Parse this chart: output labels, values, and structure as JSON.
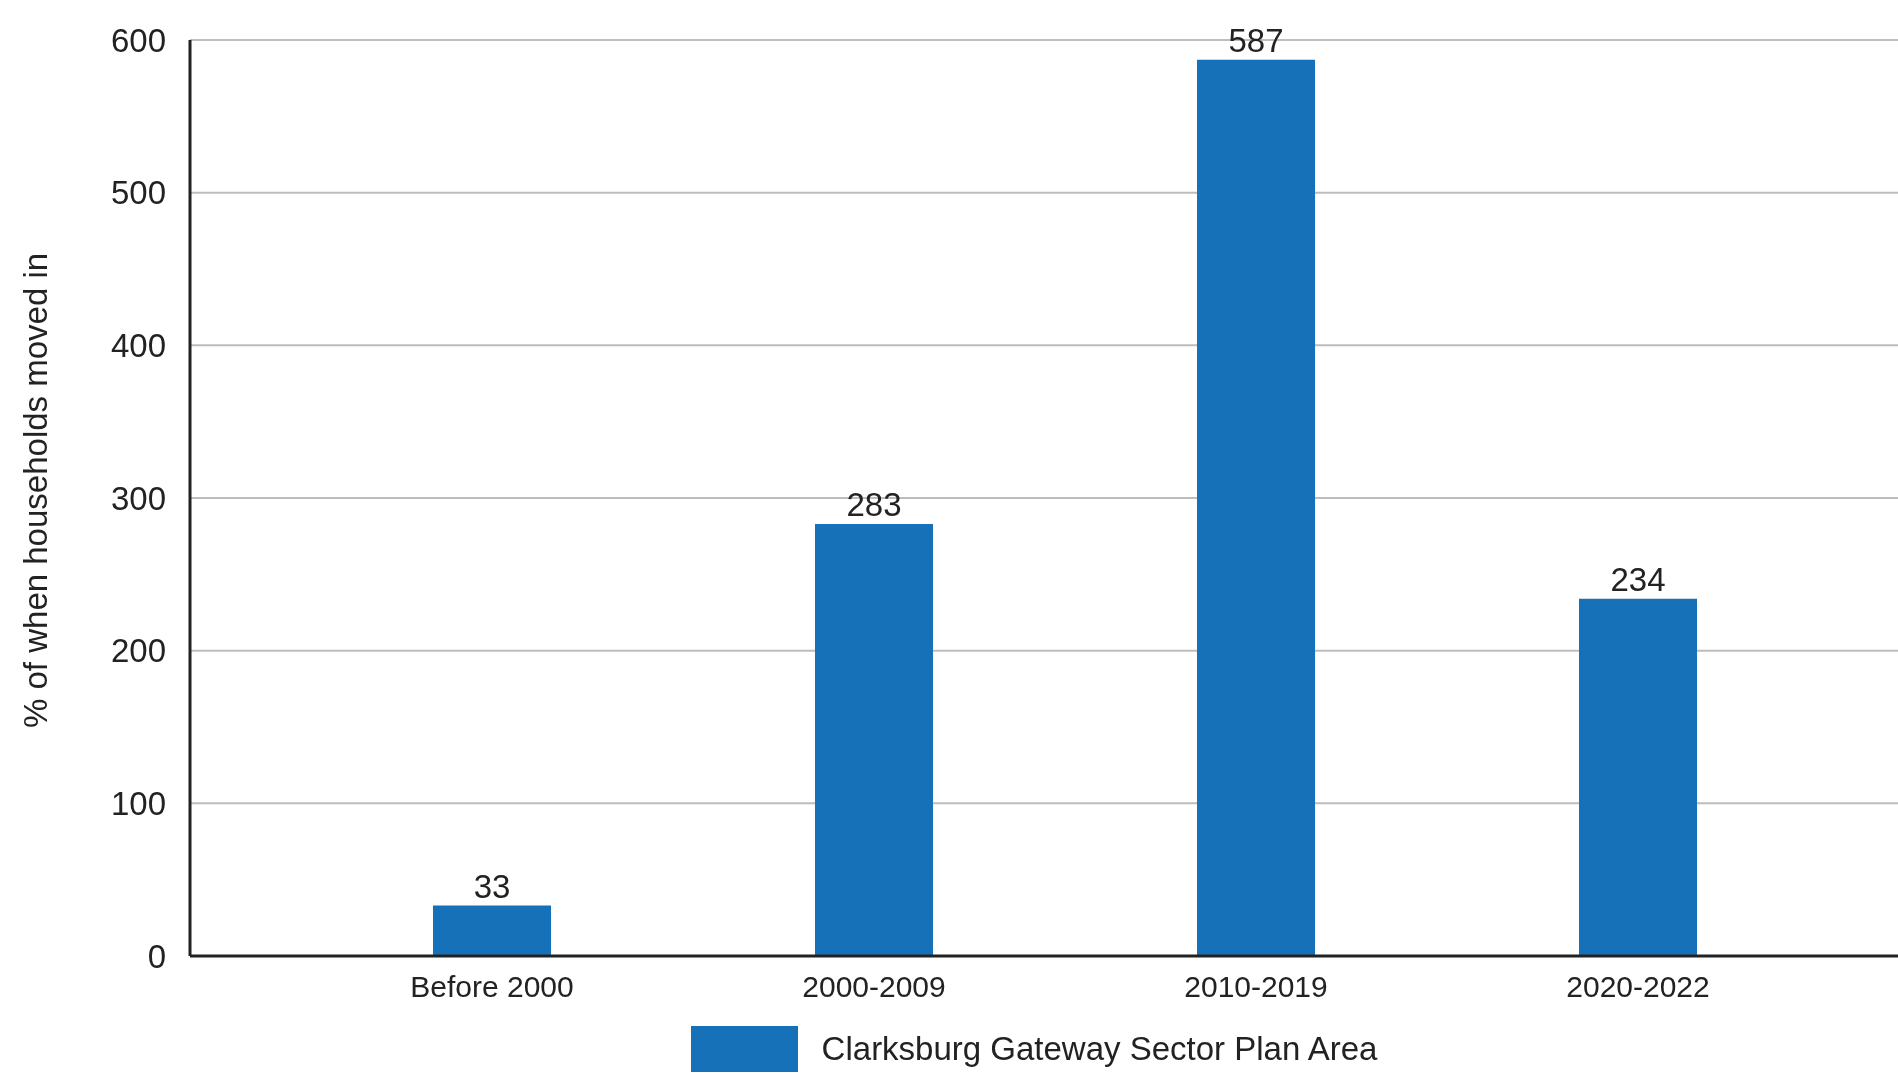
{
  "chart_data": {
    "type": "bar",
    "ylabel": "% of when households moved in",
    "categories": [
      "Before 2000",
      "2000-2009",
      "2010-2019",
      "2020-2022"
    ],
    "series": [
      {
        "name": "Clarksburg Gateway Sector Plan Area",
        "color": "#1771b9",
        "values": [
          33,
          283,
          587,
          234
        ]
      }
    ],
    "ylim": [
      0,
      600
    ],
    "yticks": [
      0,
      100,
      200,
      300,
      400,
      500,
      600
    ],
    "grid": "y",
    "legend": "bottom",
    "data_labels": true
  }
}
